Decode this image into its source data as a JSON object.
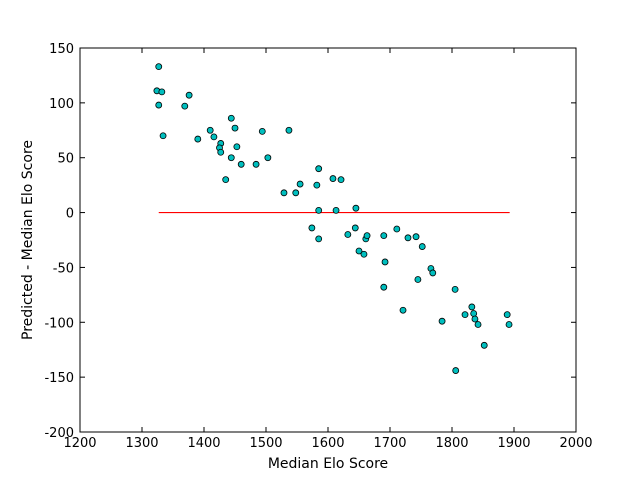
{
  "chart_data": {
    "type": "scatter",
    "x_label": "Median Elo Score",
    "y_label": "Predicted - Median Elo Score",
    "xlim": [
      1200,
      2000
    ],
    "xticks": [
      1200,
      1300,
      1400,
      1500,
      1600,
      1700,
      1800,
      1900,
      2000
    ],
    "ylim": [
      -200,
      150
    ],
    "yticks": [
      -200,
      -150,
      -100,
      -50,
      0,
      50,
      100,
      150
    ],
    "color": "#00bfbf",
    "edgecolor": "#000000",
    "x": [
      1327,
      1324,
      1332,
      1327,
      1334,
      1369,
      1376,
      1390,
      1410,
      1416,
      1427,
      1425,
      1427,
      1444,
      1450,
      1453,
      1444,
      1435,
      1460,
      1484,
      1494,
      1503,
      1537,
      1529,
      1548,
      1555,
      1585,
      1582,
      1585,
      1574,
      1585,
      1608,
      1621,
      1613,
      1645,
      1644,
      1632,
      1661,
      1663,
      1650,
      1658,
      1690,
      1711,
      1729,
      1742,
      1752,
      1692,
      1690,
      1745,
      1766,
      1769,
      1721,
      1784,
      1805,
      1806,
      1821,
      1832,
      1835,
      1837,
      1842,
      1852,
      1889,
      1892
    ],
    "values": [
      133,
      111,
      110,
      98,
      70,
      97,
      107,
      67,
      75,
      69,
      63,
      59,
      55,
      86,
      77,
      60,
      50,
      30,
      44,
      44,
      74,
      50,
      75,
      18,
      18,
      26,
      40,
      25,
      2,
      -14,
      -24,
      31,
      30,
      2,
      4,
      -14,
      -20,
      -24,
      -21,
      -35,
      -38,
      -21,
      -15,
      -23,
      -22,
      -31,
      -45,
      -68,
      -61,
      -51,
      -55,
      -89,
      -99,
      -70,
      -144,
      -93,
      -86,
      -92,
      -97,
      -102,
      -121,
      -93,
      -102
    ],
    "reference_line": {
      "x": [
        1327,
        1893
      ],
      "values": [
        0,
        0
      ],
      "color": "#ff0000"
    }
  }
}
